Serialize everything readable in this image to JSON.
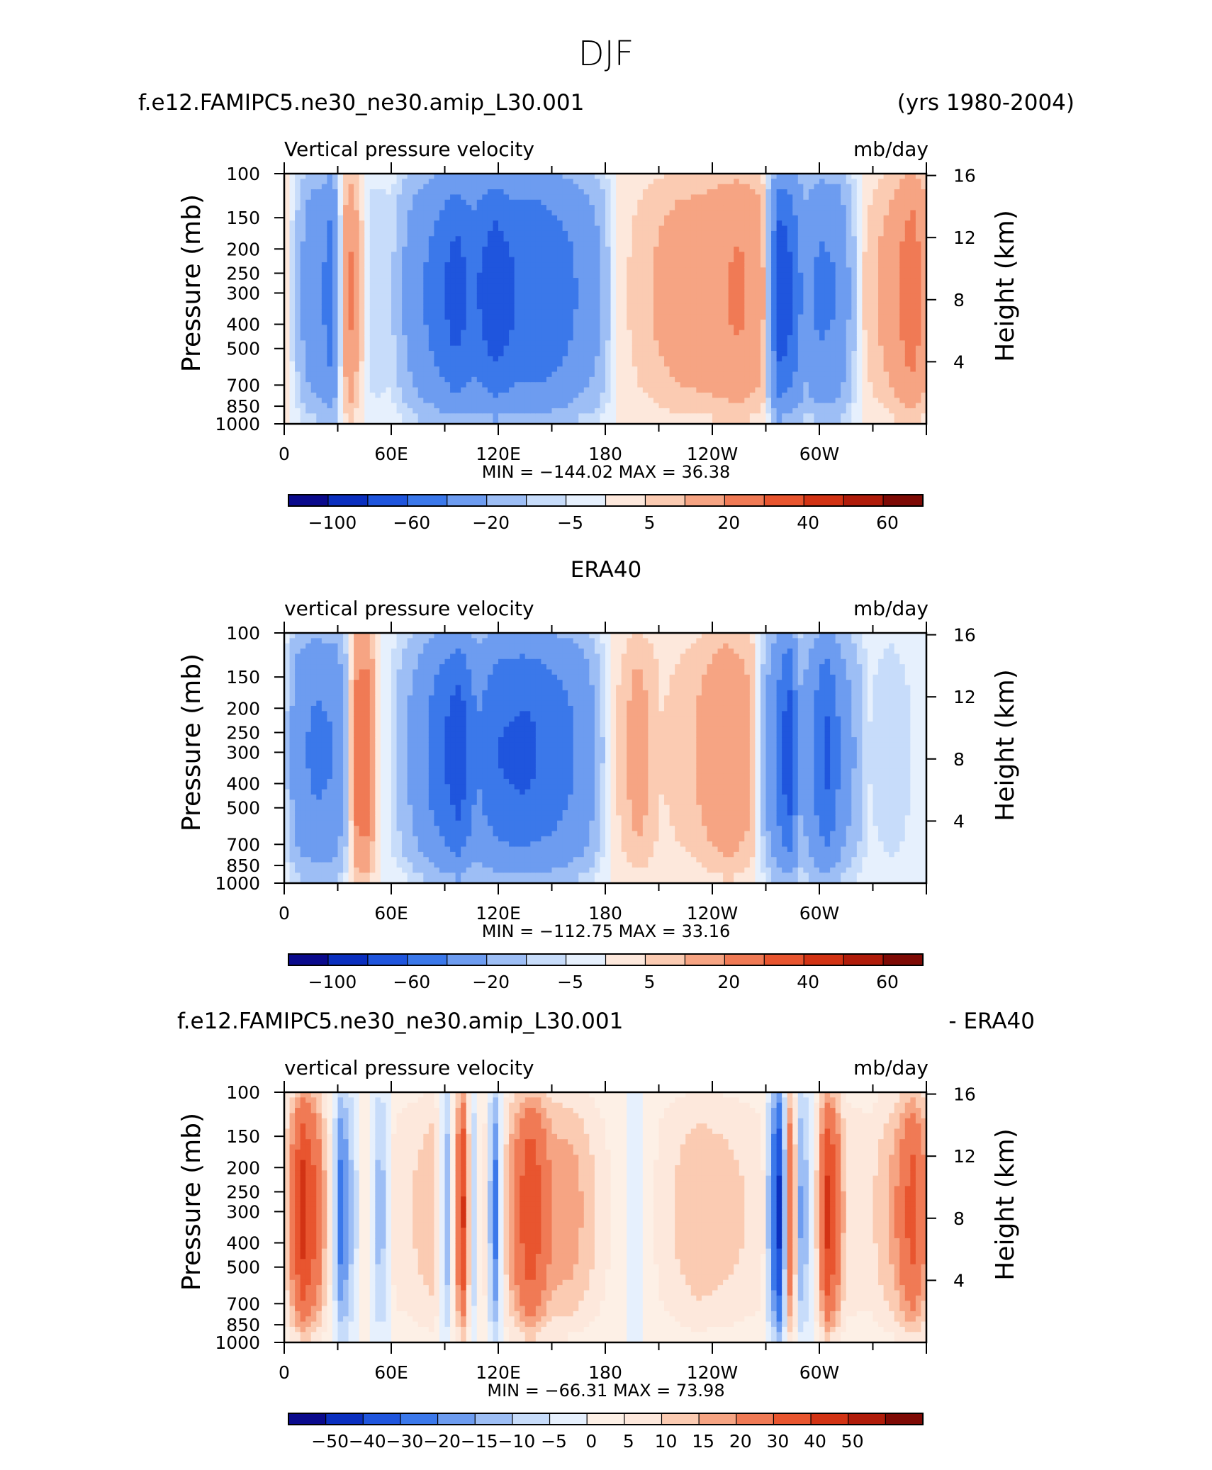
{
  "page": {
    "title": "DJF"
  },
  "colors": {
    "base": [
      "#0a0a8c",
      "#0a2fbf",
      "#1f55dd",
      "#3b78ea",
      "#6d9cf0",
      "#9dbef5",
      "#c7dcfa",
      "#e6f0fd",
      "#fde8dc",
      "#fbcbb2",
      "#f6a483",
      "#f07a55",
      "#e8552f",
      "#d23314",
      "#b01c0a",
      "#7e0a05"
    ],
    "diff": [
      "#0a0a8c",
      "#0a2fbf",
      "#1f55dd",
      "#3b78ea",
      "#6d9cf0",
      "#9dbef5",
      "#c7dcfa",
      "#e6f0fd",
      "#fdf0e6",
      "#fde8dc",
      "#fbcbb2",
      "#f6a483",
      "#f07a55",
      "#e8552f",
      "#d23314",
      "#b01c0a",
      "#7e0a05"
    ]
  },
  "panels": [
    {
      "title_left": "f.e12.FAMIPC5.ne30_ne30.amip_L30.001",
      "title_center": "",
      "title_right": "(yrs 1980-2004)",
      "var_label": "Vertical pressure velocity",
      "units": "mb/day",
      "ylabel": "Pressure (mb)",
      "ylabel_right": "Height (km)",
      "stats": "MIN = −144.02   MAX =   36.38",
      "cbar_labels": [
        "−100",
        "−60",
        "−20",
        "−5",
        "5",
        "20",
        "40",
        "60"
      ],
      "scheme": "base"
    },
    {
      "title_left": "",
      "title_center": "ERA40",
      "title_right": "",
      "var_label": "vertical pressure velocity",
      "units": "mb/day",
      "ylabel": "Pressure (mb)",
      "ylabel_right": "Height (km)",
      "stats": "MIN = −112.75   MAX =   33.16",
      "cbar_labels": [
        "−100",
        "−60",
        "−20",
        "−5",
        "5",
        "20",
        "40",
        "60"
      ],
      "scheme": "base"
    },
    {
      "title_left": "f.e12.FAMIPC5.ne30_ne30.amip_L30.001",
      "title_center": "",
      "title_right": "- ERA40",
      "var_label": "vertical pressure velocity",
      "units": "mb/day",
      "ylabel": "Pressure (mb)",
      "ylabel_right": "Height (km)",
      "stats": "MIN = −66.31   MAX =   73.98",
      "cbar_labels": [
        "−50",
        "−40",
        "−30",
        "−20",
        "−15",
        "−10",
        "−5",
        "0",
        "5",
        "10",
        "15",
        "20",
        "30",
        "40",
        "50"
      ],
      "scheme": "diff"
    }
  ],
  "chart_data": [
    {
      "type": "heatmap",
      "title": "f.e12.FAMIPC5.ne30_ne30.amip_L30.001",
      "variable": "Vertical pressure velocity",
      "units": "mb/day",
      "x_ticks": [
        "0",
        "60E",
        "120E",
        "180",
        "120W",
        "60W"
      ],
      "x_range": [
        0,
        360
      ],
      "y_ticks": [
        "100",
        "150",
        "200",
        "250",
        "300",
        "400",
        "500",
        "700",
        "850",
        "1000"
      ],
      "y_range": [
        1000,
        100
      ],
      "y_right_ticks": [
        "16",
        "12",
        "8",
        "4"
      ],
      "levels": [
        -120,
        -100,
        -80,
        -60,
        -40,
        -20,
        -10,
        -5,
        0,
        5,
        10,
        20,
        30,
        40,
        50,
        60,
        70
      ],
      "min": -144.02,
      "max": 36.38,
      "profile": [
        [
          0,
          5
        ],
        [
          8,
          -15
        ],
        [
          15,
          -35
        ],
        [
          22,
          -40
        ],
        [
          27,
          -55
        ],
        [
          31,
          -10
        ],
        [
          36,
          25
        ],
        [
          42,
          10
        ],
        [
          50,
          -10
        ],
        [
          60,
          -8
        ],
        [
          72,
          -30
        ],
        [
          85,
          -50
        ],
        [
          96,
          -70
        ],
        [
          106,
          -55
        ],
        [
          118,
          -75
        ],
        [
          130,
          -60
        ],
        [
          145,
          -60
        ],
        [
          160,
          -45
        ],
        [
          175,
          -25
        ],
        [
          188,
          3
        ],
        [
          200,
          8
        ],
        [
          220,
          15
        ],
        [
          240,
          18
        ],
        [
          255,
          22
        ],
        [
          268,
          15
        ],
        [
          278,
          -80
        ],
        [
          285,
          -60
        ],
        [
          292,
          -30
        ],
        [
          300,
          -45
        ],
        [
          310,
          -40
        ],
        [
          325,
          5
        ],
        [
          340,
          15
        ],
        [
          352,
          28
        ],
        [
          360,
          15
        ]
      ]
    },
    {
      "type": "heatmap",
      "title": "ERA40",
      "variable": "vertical pressure velocity",
      "units": "mb/day",
      "x_ticks": [
        "0",
        "60E",
        "120E",
        "180",
        "120W",
        "60W"
      ],
      "x_range": [
        0,
        360
      ],
      "y_ticks": [
        "100",
        "150",
        "200",
        "250",
        "300",
        "400",
        "500",
        "700",
        "850",
        "1000"
      ],
      "y_range": [
        1000,
        100
      ],
      "y_right_ticks": [
        "16",
        "12",
        "8",
        "4"
      ],
      "levels": [
        -120,
        -100,
        -80,
        -60,
        -40,
        -20,
        -10,
        -5,
        0,
        5,
        10,
        20,
        30,
        40,
        50,
        60,
        70
      ],
      "min": -112.75,
      "max": 33.16,
      "profile": [
        [
          0,
          -5
        ],
        [
          8,
          -35
        ],
        [
          18,
          -45
        ],
        [
          28,
          -40
        ],
        [
          34,
          -20
        ],
        [
          40,
          25
        ],
        [
          46,
          30
        ],
        [
          52,
          5
        ],
        [
          62,
          -10
        ],
        [
          72,
          -25
        ],
        [
          82,
          -45
        ],
        [
          98,
          -75
        ],
        [
          108,
          -40
        ],
        [
          120,
          -60
        ],
        [
          135,
          -65
        ],
        [
          150,
          -55
        ],
        [
          168,
          -35
        ],
        [
          184,
          3
        ],
        [
          198,
          15
        ],
        [
          212,
          5
        ],
        [
          230,
          10
        ],
        [
          248,
          20
        ],
        [
          262,
          12
        ],
        [
          276,
          -45
        ],
        [
          283,
          -75
        ],
        [
          290,
          -20
        ],
        [
          304,
          -65
        ],
        [
          314,
          -30
        ],
        [
          328,
          -5
        ],
        [
          340,
          -10
        ],
        [
          352,
          -5
        ],
        [
          360,
          -3
        ]
      ]
    },
    {
      "type": "heatmap",
      "title": "f.e12.FAMIPC5.ne30_ne30.amip_L30.001 - ERA40",
      "variable": "vertical pressure velocity",
      "units": "mb/day",
      "x_ticks": [
        "0",
        "60E",
        "120E",
        "180",
        "120W",
        "60W"
      ],
      "x_range": [
        0,
        360
      ],
      "y_ticks": [
        "100",
        "150",
        "200",
        "250",
        "300",
        "400",
        "500",
        "700",
        "850",
        "1000"
      ],
      "y_range": [
        1000,
        100
      ],
      "y_right_ticks": [
        "16",
        "12",
        "8",
        "4"
      ],
      "levels": [
        -60,
        -50,
        -40,
        -30,
        -20,
        -15,
        -10,
        -5,
        0,
        5,
        10,
        15,
        20,
        30,
        40,
        50,
        60
      ],
      "min": -66.31,
      "max": 73.98,
      "profile": [
        [
          0,
          8
        ],
        [
          10,
          45
        ],
        [
          18,
          30
        ],
        [
          26,
          5
        ],
        [
          32,
          -25
        ],
        [
          38,
          -10
        ],
        [
          46,
          5
        ],
        [
          54,
          -15
        ],
        [
          62,
          8
        ],
        [
          72,
          10
        ],
        [
          84,
          15
        ],
        [
          92,
          -15
        ],
        [
          100,
          45
        ],
        [
          106,
          -10
        ],
        [
          112,
          10
        ],
        [
          118,
          -25
        ],
        [
          125,
          15
        ],
        [
          138,
          40
        ],
        [
          150,
          20
        ],
        [
          162,
          18
        ],
        [
          178,
          8
        ],
        [
          196,
          -3
        ],
        [
          212,
          8
        ],
        [
          232,
          15
        ],
        [
          250,
          12
        ],
        [
          268,
          8
        ],
        [
          278,
          -45
        ],
        [
          284,
          35
        ],
        [
          290,
          -20
        ],
        [
          298,
          8
        ],
        [
          305,
          45
        ],
        [
          315,
          10
        ],
        [
          328,
          8
        ],
        [
          342,
          18
        ],
        [
          352,
          35
        ],
        [
          360,
          20
        ]
      ]
    }
  ]
}
